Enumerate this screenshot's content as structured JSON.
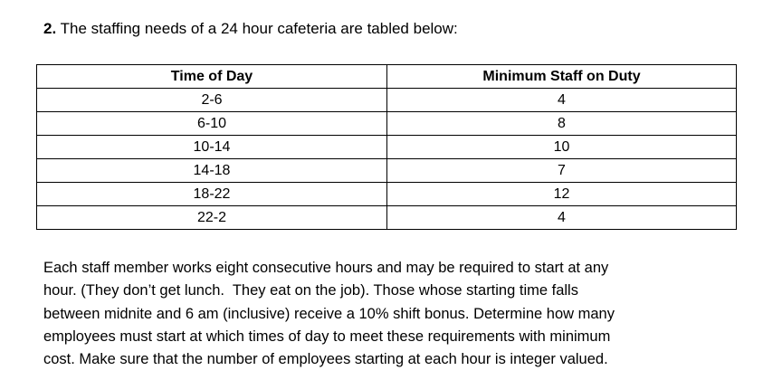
{
  "question": {
    "number": "2.",
    "intro": "The staffing needs of a 24 hour cafeteria are tabled below:"
  },
  "table": {
    "headers": [
      "Time of Day",
      "Minimum Staff on Duty"
    ],
    "rows": [
      [
        "2-6",
        4
      ],
      [
        "6-10",
        8
      ],
      [
        "10-14",
        10
      ],
      [
        "14-18",
        7
      ],
      [
        "18-22",
        12
      ],
      [
        "22-2",
        4
      ]
    ]
  },
  "paragraph": {
    "lines": [
      "Each staff member works eight consecutive hours and may be required to start at any",
      "hour. (They don’t get lunch.  They eat on the job). Those whose starting time falls",
      "between midnite and 6 am (inclusive) receive a 10% shift bonus. Determine how many",
      "employees must start at which times of day to meet these requirements with minimum",
      "cost. Make sure that the number of employees starting at each hour is integer valued."
    ]
  }
}
